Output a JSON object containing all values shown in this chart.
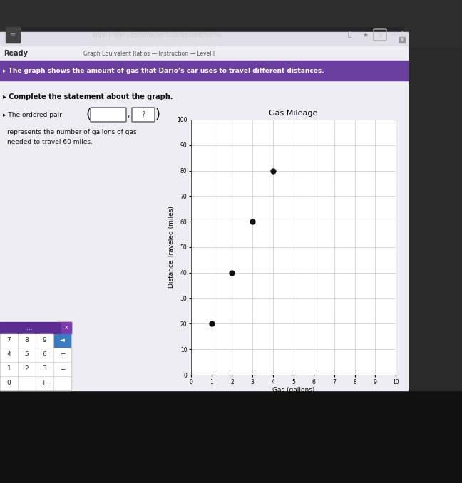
{
  "title": "Gas Mileage",
  "xlabel": "Gas (gallons)",
  "ylabel": "Distance Traveled (miles)",
  "x_data": [
    1,
    2,
    3,
    4
  ],
  "y_data": [
    20,
    40,
    60,
    80
  ],
  "xlim": [
    0,
    10
  ],
  "ylim": [
    0,
    100
  ],
  "xticks": [
    0,
    1,
    2,
    3,
    4,
    5,
    6,
    7,
    8,
    9,
    10
  ],
  "yticks": [
    0,
    10,
    20,
    30,
    40,
    50,
    60,
    70,
    80,
    90,
    100
  ],
  "dot_color": "#111111",
  "dot_size": 25,
  "tab_text": "login.i-ready.com/student/dashboard/home",
  "breadcrumb": "Graph Equivalent Ratios — Instruction — Level F",
  "ready_text": "Ready",
  "instruction": "The graph shows the amount of gas that Dario’s car uses to travel different distances.",
  "prompt": "Complete the statement about the graph.",
  "ordered_pair_text": "The ordered pair",
  "box2_text": "?",
  "statement_line1": "represents the number of gallons of gas",
  "statement_line2": "needed to travel 60 miles.",
  "grid_color": "#d0d0d0",
  "bg_dark": "#1a1a1a",
  "bg_browser": "#3a3a3a",
  "bg_addrbar": "#252525",
  "bg_tabbar": "#e0dfe8",
  "bg_content": "#eeedf4",
  "bg_purple_banner": "#6b3fa0",
  "bg_ready_bar": "#eeedf4",
  "bg_white": "#ffffff",
  "bg_calc_header": "#5c2d91",
  "bg_calc_body": "#cccccc",
  "bg_calc_backspace": "#3a7abd",
  "color_ready": "#333333",
  "color_breadcrumb": "#555555",
  "color_banner_text": "#ffffff",
  "color_prompt": "#111111",
  "color_body": "#111111",
  "color_box_border": "#777777",
  "color_box2_text": "#555555",
  "color_calc_text": "#222222",
  "color_right_panel": "#2a2a2a"
}
